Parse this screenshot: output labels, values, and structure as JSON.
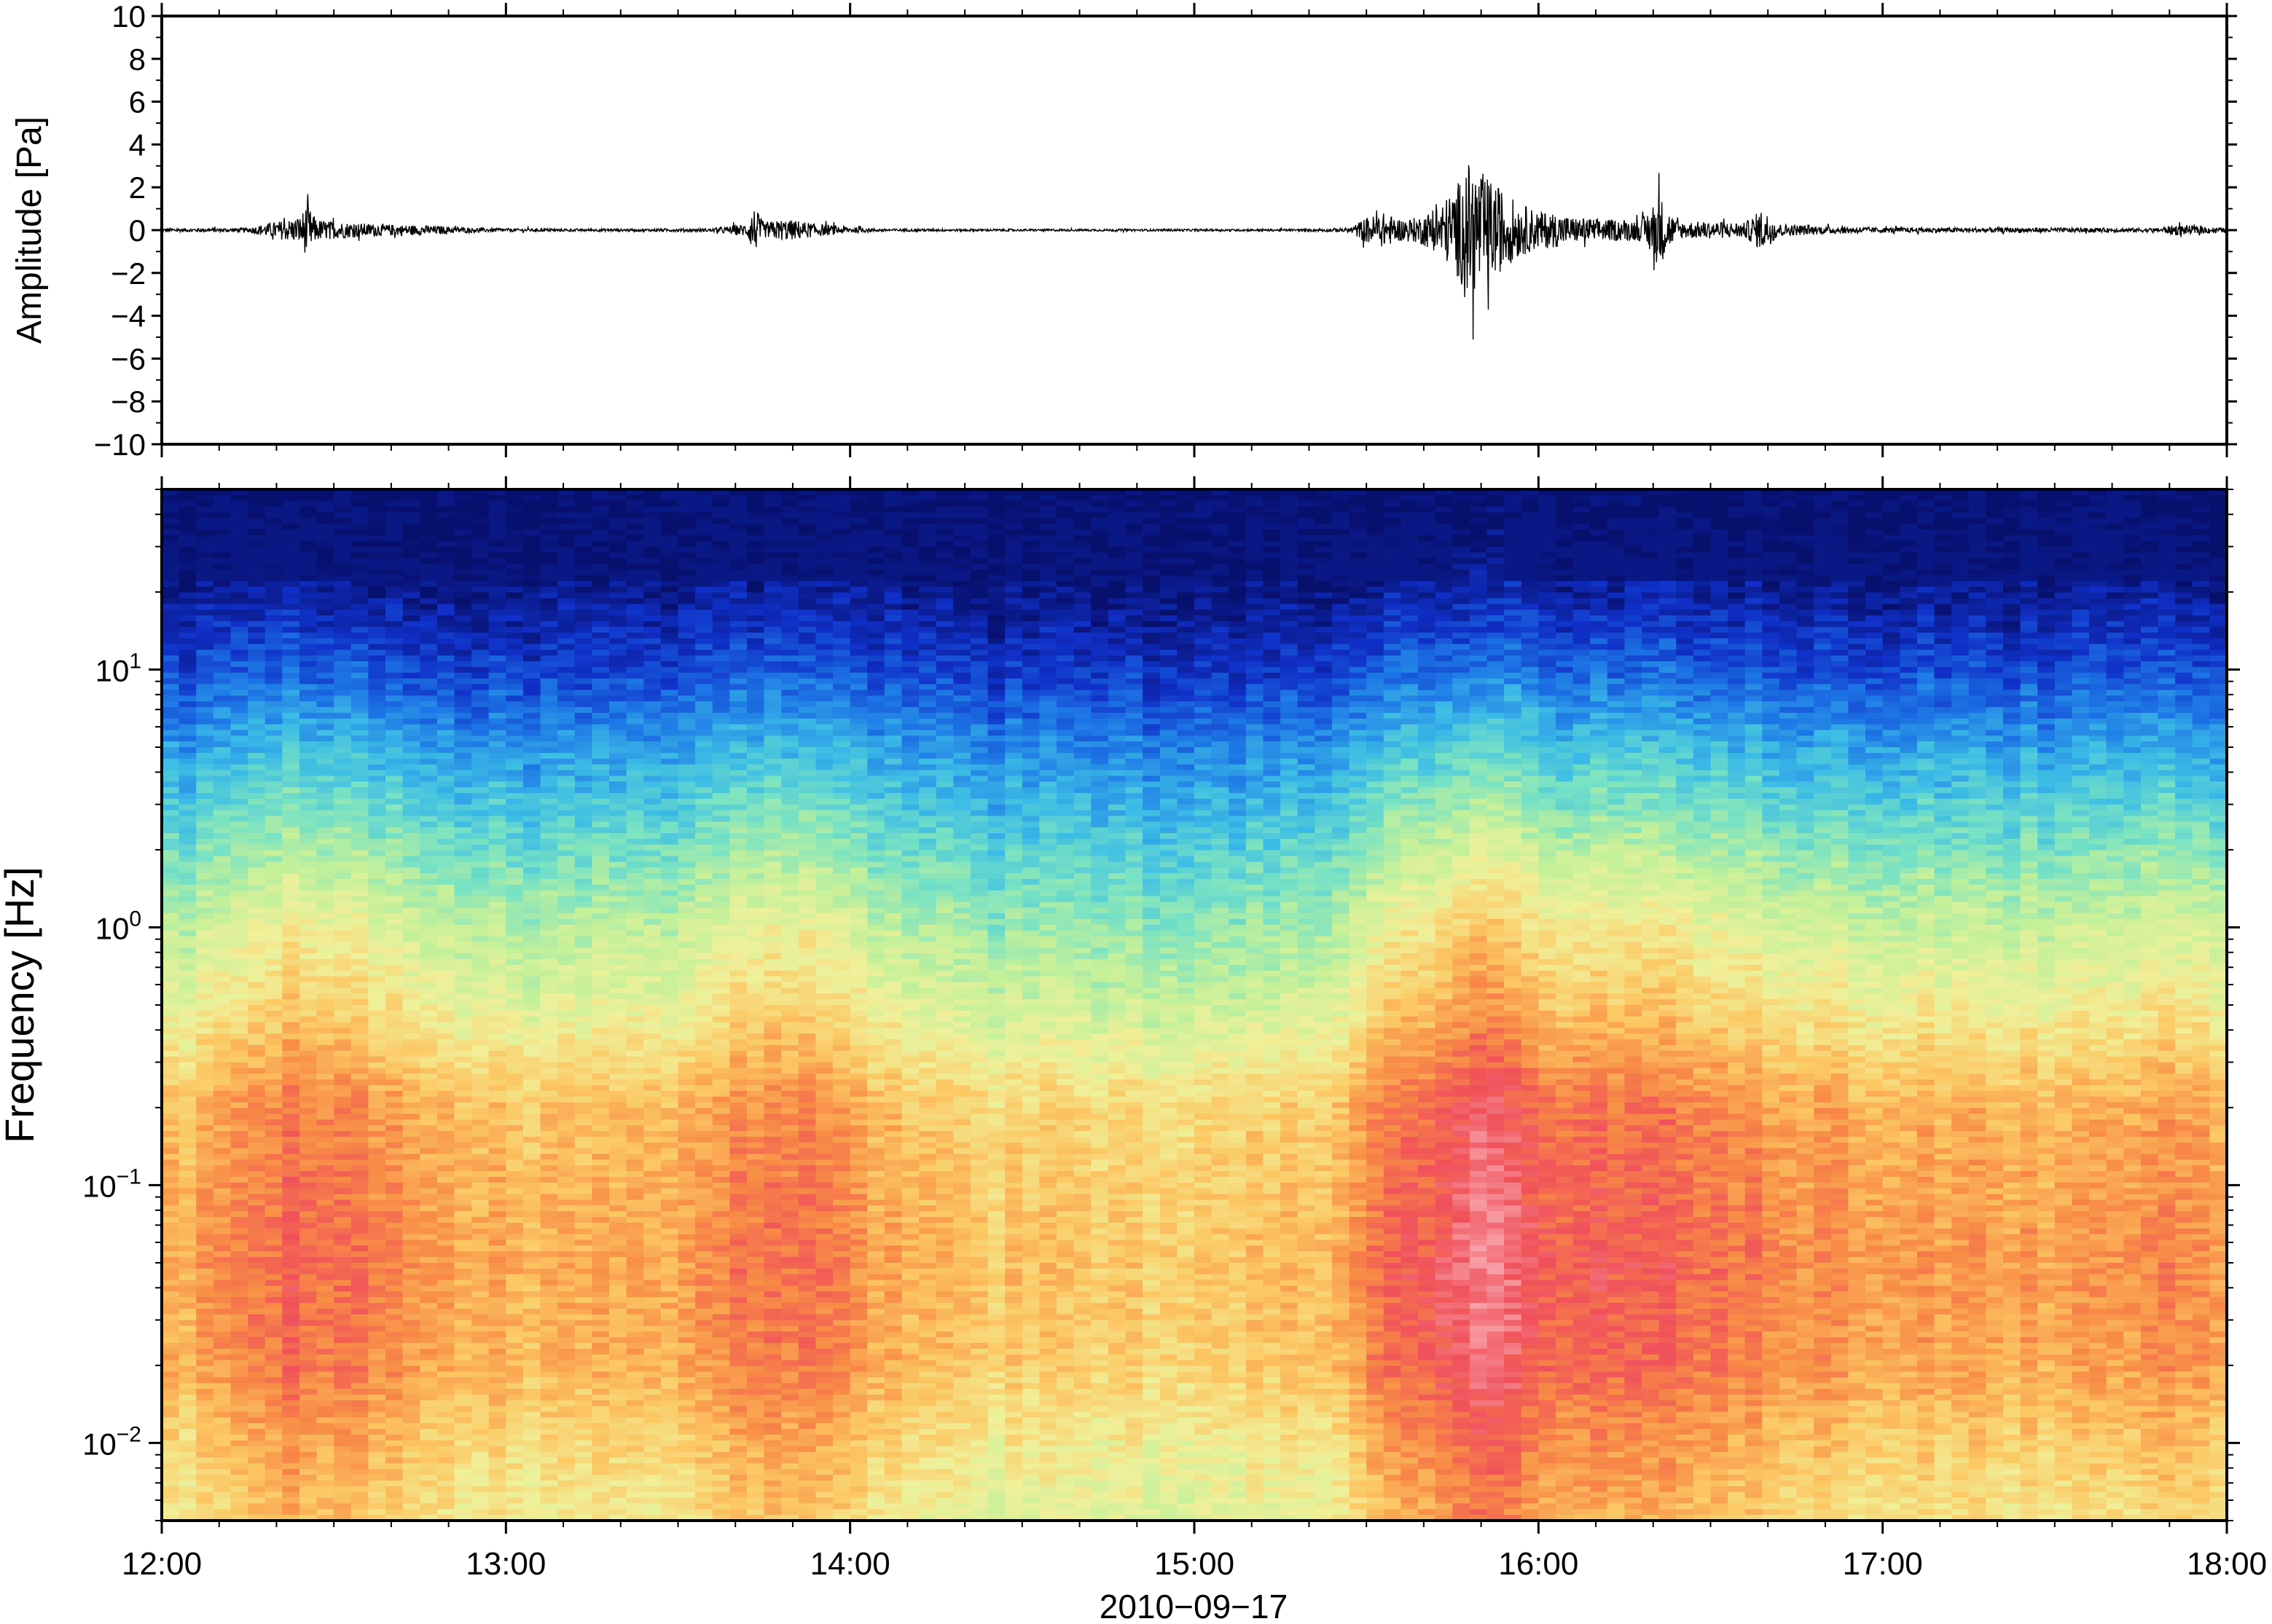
{
  "chart_data": [
    {
      "type": "line",
      "ylabel": "Amplitude [Pa]",
      "ylim": [
        -10,
        10
      ],
      "yticks": [
        10,
        8,
        6,
        4,
        2,
        0,
        -2,
        -4,
        -6,
        -8,
        -10
      ],
      "ytick_labels": [
        "10",
        "8",
        "6",
        "4",
        "2",
        "0",
        "−2",
        "−4",
        "−6",
        "−8",
        "−10"
      ],
      "xlim_hours": [
        12,
        18
      ],
      "series": [
        {
          "color": "#000000",
          "envelope": {
            "x_hours": [
              12.0,
              12.25,
              12.3,
              12.35,
              12.4,
              12.42,
              12.45,
              12.5,
              12.55,
              12.6,
              12.7,
              12.8,
              12.9,
              13.0,
              13.2,
              13.4,
              13.6,
              13.7,
              13.72,
              13.75,
              13.8,
              13.85,
              13.9,
              14.0,
              14.1,
              14.5,
              15.0,
              15.3,
              15.45,
              15.5,
              15.55,
              15.6,
              15.65,
              15.7,
              15.75,
              15.8,
              15.85,
              15.9,
              15.95,
              16.0,
              16.05,
              16.1,
              16.2,
              16.3,
              16.35,
              16.4,
              16.5,
              16.6,
              16.65,
              16.7,
              16.8,
              17.0,
              17.2,
              17.4,
              17.6,
              17.8,
              17.85,
              18.0
            ],
            "amplitude_pa": [
              0.08,
              0.1,
              0.3,
              0.45,
              0.6,
              1.2,
              0.5,
              0.4,
              0.35,
              0.3,
              0.25,
              0.2,
              0.1,
              0.08,
              0.06,
              0.06,
              0.08,
              0.3,
              1.1,
              0.35,
              0.5,
              0.45,
              0.3,
              0.15,
              0.06,
              0.05,
              0.05,
              0.05,
              0.1,
              0.6,
              0.8,
              0.5,
              0.6,
              1.0,
              1.8,
              3.2,
              2.5,
              1.8,
              1.2,
              0.9,
              0.8,
              0.6,
              0.5,
              0.5,
              1.7,
              0.4,
              0.4,
              0.35,
              1.0,
              0.3,
              0.2,
              0.12,
              0.12,
              0.12,
              0.1,
              0.1,
              0.25,
              0.1
            ]
          }
        }
      ]
    },
    {
      "type": "heatmap",
      "ylabel": "Frequency [Hz]",
      "xlabel": "2010−09−17",
      "yscale": "log",
      "ylim": [
        0.005,
        50
      ],
      "ytick_labels": [
        {
          "base": "10",
          "exp": "−2",
          "value": 0.01
        },
        {
          "base": "10",
          "exp": "−1",
          "value": 0.1
        },
        {
          "base": "10",
          "exp": "0",
          "value": 1
        },
        {
          "base": "10",
          "exp": "1",
          "value": 10
        }
      ],
      "xlim_hours": [
        12,
        18
      ],
      "xtick_labels": [
        "12:00",
        "13:00",
        "14:00",
        "15:00",
        "16:00",
        "17:00",
        "18:00"
      ],
      "colormap": [
        "#08106e",
        "#1030c8",
        "#1e78e6",
        "#3cbce6",
        "#78e2c4",
        "#c4f09a",
        "#f0f09a",
        "#fcc864",
        "#f88c46",
        "#f0505a",
        "#f8a0a8"
      ],
      "level_scale": "0 (dark blue) to 10 (pink)",
      "frequency_profile": {
        "freq_hz": [
          0.005,
          0.01,
          0.02,
          0.05,
          0.1,
          0.2,
          0.5,
          1,
          2,
          5,
          10,
          20,
          50
        ],
        "level": [
          6.0,
          6.5,
          7.2,
          7.4,
          7.2,
          7.0,
          5.6,
          4.8,
          3.8,
          2.4,
          1.2,
          0.3,
          0.0
        ]
      },
      "activity": {
        "x_hours": [
          12.0,
          12.2,
          12.3,
          12.4,
          12.5,
          12.6,
          12.7,
          12.9,
          13.1,
          13.3,
          13.5,
          13.62,
          13.7,
          13.8,
          13.9,
          14.0,
          14.1,
          14.3,
          14.5,
          14.7,
          14.9,
          15.1,
          15.3,
          15.45,
          15.5,
          15.6,
          15.7,
          15.8,
          15.85,
          15.95,
          16.0,
          16.1,
          16.2,
          16.3,
          16.4,
          16.5,
          16.6,
          16.7,
          16.9,
          17.1,
          17.3,
          17.5,
          17.7,
          17.9,
          18.0
        ],
        "boost": [
          0.0,
          0.5,
          1.0,
          1.3,
          1.1,
          1.0,
          0.7,
          0.2,
          0.0,
          0.2,
          0.2,
          0.6,
          1.1,
          1.0,
          1.2,
          0.5,
          0.1,
          -0.3,
          -0.4,
          -0.4,
          -0.5,
          -0.3,
          -0.2,
          0.0,
          1.0,
          1.2,
          1.6,
          2.4,
          2.6,
          1.6,
          1.4,
          1.5,
          1.5,
          1.4,
          1.3,
          1.2,
          1.0,
          0.8,
          0.5,
          0.4,
          0.4,
          0.3,
          0.3,
          0.8,
          0.5
        ]
      }
    }
  ]
}
